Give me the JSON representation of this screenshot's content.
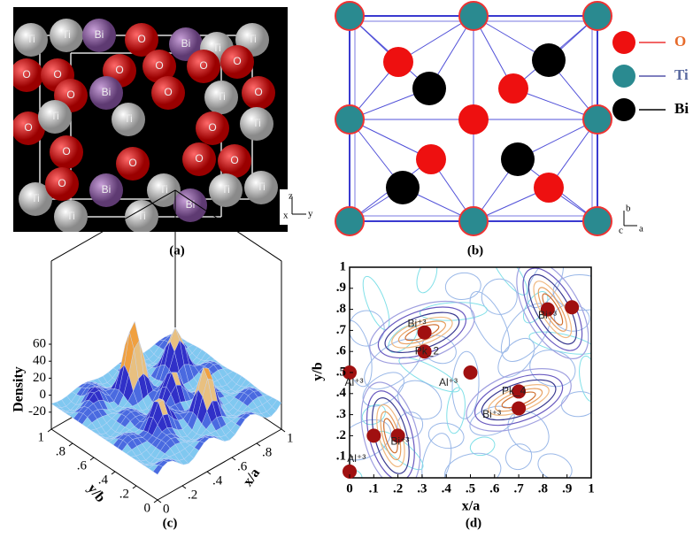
{
  "panel_a": {
    "atoms": [
      "Ti",
      "Ti",
      "Bi",
      "O",
      "Bi",
      "Ti",
      "Ti",
      "O",
      "O",
      "O",
      "O",
      "O",
      "O",
      "O",
      "Bi",
      "O",
      "Ti",
      "O",
      "O",
      "Ti",
      "Ti",
      "O",
      "Ti",
      "O",
      "O",
      "O",
      "O",
      "Ti",
      "O",
      "Bi",
      "Ti",
      "Bi",
      "Ti",
      "Ti",
      "Ti",
      "Ti"
    ],
    "axis_z": "z",
    "axis_x": "x",
    "axis_y": "y",
    "caption": "(a)"
  },
  "panel_b": {
    "legend": [
      "O",
      "Ti",
      "Bi"
    ],
    "axis_b": "b",
    "axis_c": "c",
    "axis_a": "a",
    "caption": "(b)"
  },
  "panel_c": {
    "z_label": "Density",
    "z_ticks": [
      60,
      40,
      20,
      0,
      -20
    ],
    "y_label": "y/b",
    "x_label": "x/a",
    "y_ticks": [
      1,
      {
        "value": 0.8,
        "label": ".8"
      },
      {
        "value": 0.6,
        "label": ".6"
      },
      {
        "value": 0.4,
        "label": ".4"
      },
      {
        "value": 0.2,
        "label": ".2"
      },
      0
    ],
    "x_ticks": [
      0,
      {
        "value": 0.2,
        "label": ".2"
      },
      {
        "value": 0.4,
        "label": ".4"
      },
      {
        "value": 0.6,
        "label": ".6"
      },
      {
        "value": 0.8,
        "label": ".8"
      },
      1
    ],
    "caption": "(c)"
  },
  "panel_d": {
    "x_label": "x/a",
    "y_label": "y/b",
    "x_ticks": [
      0,
      {
        "value": 0.1,
        "label": ".1"
      },
      {
        "value": 0.2,
        "label": ".2"
      },
      {
        "value": 0.3,
        "label": ".3"
      },
      {
        "value": 0.4,
        "label": ".4"
      },
      {
        "value": 0.5,
        "label": ".5"
      },
      {
        "value": 0.6,
        "label": ".6"
      },
      {
        "value": 0.7,
        "label": ".7"
      },
      {
        "value": 0.8,
        "label": ".8"
      },
      {
        "value": 0.9,
        "label": ".9"
      },
      1
    ],
    "y_ticks": [
      {
        "value": 0.1,
        "label": ".1"
      },
      {
        "value": 0.2,
        "label": ".2"
      },
      {
        "value": 0.3,
        "label": ".3"
      },
      {
        "value": 0.4,
        "label": ".4"
      },
      {
        "value": 0.5,
        "label": ".5"
      },
      {
        "value": 0.6,
        "label": ".6"
      },
      {
        "value": 0.7,
        "label": ".7"
      },
      {
        "value": 0.8,
        "label": ".8"
      },
      {
        "value": 0.9,
        "label": ".9"
      },
      1
    ],
    "annotations": [
      "Bi⁺³",
      "Bi⁺³",
      "Al⁺³",
      "Pk_2",
      "Al⁺³",
      "Pk_4",
      "Bi⁺³",
      "Bi⁺³",
      "Al⁺³"
    ],
    "caption": "(d)"
  }
}
